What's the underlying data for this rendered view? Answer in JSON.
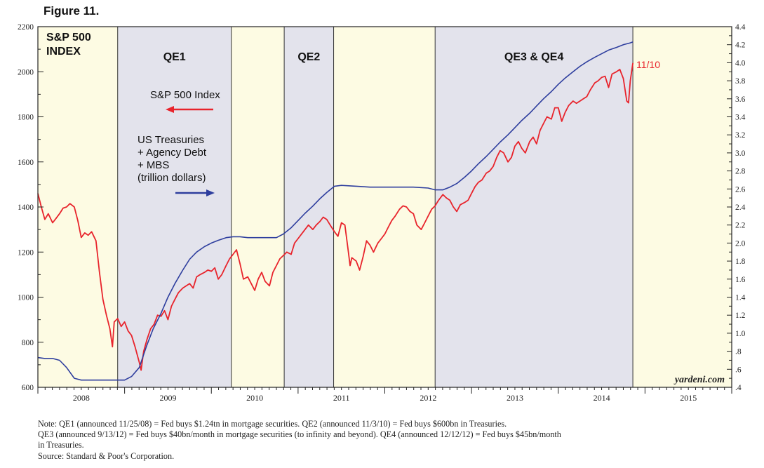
{
  "figure": {
    "title": "Figure 11.",
    "watermark": "yardeni.com",
    "notes": [
      "Note: QE1 (announced 11/25/08) = Fed buys $1.24tn in mortgage securities. QE2 (announced 11/3/10) = Fed buys $600bn in Treasuries.",
      "QE3 (announced 9/13/12) = Fed buys $40bn/month in mortgage securities (to infinity and beyond). QE4 (announced 12/12/12) = Fed buys $45bn/month",
      "in Treasuries.",
      "Source: Standard & Poor's Corporation."
    ]
  },
  "chart_data": {
    "type": "line",
    "title": "S&P 500 INDEX",
    "x_range": [
      2008.0,
      2016.0
    ],
    "x_ticks": [
      "2008",
      "2009",
      "2010",
      "2011",
      "2012",
      "2013",
      "2014",
      "2015"
    ],
    "y_left": {
      "range": [
        600,
        2200
      ],
      "ticks": [
        600,
        800,
        1000,
        1200,
        1400,
        1600,
        1800,
        2000,
        2200
      ]
    },
    "y_right": {
      "range": [
        0.4,
        4.4
      ],
      "ticks": [
        ".4",
        ".6",
        ".8",
        "1.0",
        "1.2",
        "1.4",
        "1.6",
        "1.8",
        "2.0",
        "2.2",
        "2.4",
        "2.6",
        "2.8",
        "3.0",
        "3.2",
        "3.4",
        "3.6",
        "3.8",
        "4.0",
        "4.2",
        "4.4"
      ]
    },
    "grid": false,
    "periods": [
      {
        "label": "",
        "start": 2008.0,
        "end": 2008.92,
        "shade": "#fdfbe3"
      },
      {
        "label": "QE1",
        "start": 2008.92,
        "end": 2010.23,
        "shade": "#e3e3ec"
      },
      {
        "label": "",
        "start": 2010.23,
        "end": 2010.84,
        "shade": "#fdfbe3"
      },
      {
        "label": "QE2",
        "start": 2010.84,
        "end": 2011.41,
        "shade": "#e3e3ec"
      },
      {
        "label": "",
        "start": 2011.41,
        "end": 2012.58,
        "shade": "#fdfbe3"
      },
      {
        "label": "QE3 & QE4",
        "start": 2012.58,
        "end": 2014.86,
        "shade": "#e3e3ec"
      },
      {
        "label": "",
        "start": 2014.86,
        "end": 2016.0,
        "shade": "#fdfbe3"
      }
    ],
    "legend": {
      "sp500_label": "S&P 500 Index",
      "fed_label_lines": [
        "US Treasuries",
        "+ Agency Debt",
        "+ MBS",
        "(trillion dollars)"
      ]
    },
    "end_label": "11/10",
    "series": [
      {
        "name": "S&P 500 Index",
        "axis": "left",
        "color": "#e8242c",
        "points": [
          [
            2008.0,
            1460
          ],
          [
            2008.04,
            1400
          ],
          [
            2008.08,
            1345
          ],
          [
            2008.12,
            1370
          ],
          [
            2008.17,
            1330
          ],
          [
            2008.21,
            1350
          ],
          [
            2008.25,
            1370
          ],
          [
            2008.29,
            1395
          ],
          [
            2008.33,
            1400
          ],
          [
            2008.37,
            1415
          ],
          [
            2008.42,
            1400
          ],
          [
            2008.46,
            1340
          ],
          [
            2008.5,
            1265
          ],
          [
            2008.54,
            1285
          ],
          [
            2008.58,
            1275
          ],
          [
            2008.62,
            1290
          ],
          [
            2008.67,
            1250
          ],
          [
            2008.71,
            1110
          ],
          [
            2008.75,
            990
          ],
          [
            2008.79,
            920
          ],
          [
            2008.83,
            860
          ],
          [
            2008.86,
            780
          ],
          [
            2008.88,
            890
          ],
          [
            2008.92,
            905
          ],
          [
            2008.96,
            870
          ],
          [
            2009.0,
            890
          ],
          [
            2009.04,
            850
          ],
          [
            2009.08,
            830
          ],
          [
            2009.12,
            780
          ],
          [
            2009.17,
            710
          ],
          [
            2009.19,
            676
          ],
          [
            2009.22,
            760
          ],
          [
            2009.26,
            815
          ],
          [
            2009.3,
            860
          ],
          [
            2009.34,
            880
          ],
          [
            2009.38,
            920
          ],
          [
            2009.42,
            915
          ],
          [
            2009.46,
            940
          ],
          [
            2009.5,
            900
          ],
          [
            2009.54,
            960
          ],
          [
            2009.58,
            990
          ],
          [
            2009.62,
            1020
          ],
          [
            2009.67,
            1040
          ],
          [
            2009.71,
            1050
          ],
          [
            2009.75,
            1060
          ],
          [
            2009.79,
            1040
          ],
          [
            2009.83,
            1090
          ],
          [
            2009.87,
            1100
          ],
          [
            2009.92,
            1110
          ],
          [
            2009.96,
            1120
          ],
          [
            2010.0,
            1115
          ],
          [
            2010.04,
            1130
          ],
          [
            2010.08,
            1080
          ],
          [
            2010.12,
            1100
          ],
          [
            2010.17,
            1140
          ],
          [
            2010.21,
            1170
          ],
          [
            2010.25,
            1190
          ],
          [
            2010.29,
            1210
          ],
          [
            2010.33,
            1150
          ],
          [
            2010.37,
            1080
          ],
          [
            2010.42,
            1090
          ],
          [
            2010.46,
            1060
          ],
          [
            2010.5,
            1030
          ],
          [
            2010.54,
            1080
          ],
          [
            2010.58,
            1110
          ],
          [
            2010.62,
            1070
          ],
          [
            2010.67,
            1050
          ],
          [
            2010.71,
            1110
          ],
          [
            2010.75,
            1140
          ],
          [
            2010.79,
            1170
          ],
          [
            2010.83,
            1185
          ],
          [
            2010.87,
            1200
          ],
          [
            2010.92,
            1190
          ],
          [
            2010.96,
            1240
          ],
          [
            2011.0,
            1260
          ],
          [
            2011.04,
            1280
          ],
          [
            2011.08,
            1300
          ],
          [
            2011.12,
            1320
          ],
          [
            2011.17,
            1300
          ],
          [
            2011.21,
            1320
          ],
          [
            2011.25,
            1335
          ],
          [
            2011.29,
            1355
          ],
          [
            2011.33,
            1345
          ],
          [
            2011.37,
            1320
          ],
          [
            2011.42,
            1290
          ],
          [
            2011.46,
            1270
          ],
          [
            2011.5,
            1330
          ],
          [
            2011.54,
            1320
          ],
          [
            2011.58,
            1200
          ],
          [
            2011.6,
            1140
          ],
          [
            2011.62,
            1175
          ],
          [
            2011.67,
            1160
          ],
          [
            2011.71,
            1120
          ],
          [
            2011.75,
            1180
          ],
          [
            2011.79,
            1250
          ],
          [
            2011.83,
            1230
          ],
          [
            2011.87,
            1200
          ],
          [
            2011.92,
            1240
          ],
          [
            2011.96,
            1260
          ],
          [
            2012.0,
            1280
          ],
          [
            2012.04,
            1310
          ],
          [
            2012.08,
            1340
          ],
          [
            2012.12,
            1360
          ],
          [
            2012.17,
            1390
          ],
          [
            2012.21,
            1405
          ],
          [
            2012.25,
            1400
          ],
          [
            2012.29,
            1380
          ],
          [
            2012.33,
            1370
          ],
          [
            2012.37,
            1320
          ],
          [
            2012.42,
            1300
          ],
          [
            2012.46,
            1330
          ],
          [
            2012.5,
            1360
          ],
          [
            2012.54,
            1390
          ],
          [
            2012.58,
            1405
          ],
          [
            2012.62,
            1430
          ],
          [
            2012.67,
            1455
          ],
          [
            2012.71,
            1440
          ],
          [
            2012.75,
            1430
          ],
          [
            2012.79,
            1400
          ],
          [
            2012.83,
            1380
          ],
          [
            2012.87,
            1410
          ],
          [
            2012.92,
            1420
          ],
          [
            2012.96,
            1430
          ],
          [
            2013.0,
            1460
          ],
          [
            2013.04,
            1490
          ],
          [
            2013.08,
            1510
          ],
          [
            2013.12,
            1520
          ],
          [
            2013.17,
            1550
          ],
          [
            2013.21,
            1560
          ],
          [
            2013.25,
            1580
          ],
          [
            2013.29,
            1620
          ],
          [
            2013.33,
            1650
          ],
          [
            2013.37,
            1640
          ],
          [
            2013.42,
            1600
          ],
          [
            2013.46,
            1620
          ],
          [
            2013.5,
            1670
          ],
          [
            2013.54,
            1690
          ],
          [
            2013.58,
            1660
          ],
          [
            2013.62,
            1640
          ],
          [
            2013.67,
            1690
          ],
          [
            2013.71,
            1710
          ],
          [
            2013.75,
            1680
          ],
          [
            2013.79,
            1740
          ],
          [
            2013.83,
            1770
          ],
          [
            2013.87,
            1800
          ],
          [
            2013.92,
            1790
          ],
          [
            2013.96,
            1840
          ],
          [
            2014.0,
            1840
          ],
          [
            2014.04,
            1780
          ],
          [
            2014.08,
            1820
          ],
          [
            2014.12,
            1850
          ],
          [
            2014.17,
            1870
          ],
          [
            2014.21,
            1860
          ],
          [
            2014.25,
            1870
          ],
          [
            2014.29,
            1880
          ],
          [
            2014.33,
            1890
          ],
          [
            2014.37,
            1920
          ],
          [
            2014.42,
            1950
          ],
          [
            2014.46,
            1960
          ],
          [
            2014.5,
            1975
          ],
          [
            2014.54,
            1980
          ],
          [
            2014.58,
            1930
          ],
          [
            2014.62,
            1990
          ],
          [
            2014.67,
            2000
          ],
          [
            2014.71,
            2010
          ],
          [
            2014.75,
            1970
          ],
          [
            2014.79,
            1870
          ],
          [
            2014.81,
            1862
          ],
          [
            2014.83,
            1960
          ],
          [
            2014.86,
            2039
          ]
        ]
      },
      {
        "name": "US Treasuries + Agency Debt + MBS",
        "axis": "right",
        "color": "#2e3e9e",
        "points": [
          [
            2008.0,
            0.73
          ],
          [
            2008.08,
            0.72
          ],
          [
            2008.17,
            0.72
          ],
          [
            2008.25,
            0.7
          ],
          [
            2008.33,
            0.62
          ],
          [
            2008.42,
            0.5
          ],
          [
            2008.5,
            0.48
          ],
          [
            2008.67,
            0.48
          ],
          [
            2008.83,
            0.48
          ],
          [
            2008.92,
            0.48
          ],
          [
            2009.0,
            0.48
          ],
          [
            2009.08,
            0.52
          ],
          [
            2009.17,
            0.62
          ],
          [
            2009.25,
            0.85
          ],
          [
            2009.33,
            1.05
          ],
          [
            2009.42,
            1.22
          ],
          [
            2009.5,
            1.4
          ],
          [
            2009.58,
            1.55
          ],
          [
            2009.67,
            1.7
          ],
          [
            2009.75,
            1.82
          ],
          [
            2009.83,
            1.9
          ],
          [
            2009.92,
            1.96
          ],
          [
            2010.0,
            2.0
          ],
          [
            2010.08,
            2.03
          ],
          [
            2010.17,
            2.06
          ],
          [
            2010.25,
            2.07
          ],
          [
            2010.33,
            2.07
          ],
          [
            2010.42,
            2.06
          ],
          [
            2010.5,
            2.06
          ],
          [
            2010.58,
            2.06
          ],
          [
            2010.67,
            2.06
          ],
          [
            2010.75,
            2.06
          ],
          [
            2010.83,
            2.1
          ],
          [
            2010.92,
            2.17
          ],
          [
            2011.0,
            2.25
          ],
          [
            2011.08,
            2.33
          ],
          [
            2011.17,
            2.41
          ],
          [
            2011.25,
            2.49
          ],
          [
            2011.33,
            2.56
          ],
          [
            2011.42,
            2.63
          ],
          [
            2011.5,
            2.64
          ],
          [
            2011.67,
            2.63
          ],
          [
            2011.83,
            2.62
          ],
          [
            2012.0,
            2.62
          ],
          [
            2012.17,
            2.62
          ],
          [
            2012.33,
            2.62
          ],
          [
            2012.5,
            2.61
          ],
          [
            2012.58,
            2.59
          ],
          [
            2012.67,
            2.59
          ],
          [
            2012.75,
            2.62
          ],
          [
            2012.83,
            2.66
          ],
          [
            2012.92,
            2.73
          ],
          [
            2013.0,
            2.8
          ],
          [
            2013.08,
            2.88
          ],
          [
            2013.17,
            2.96
          ],
          [
            2013.25,
            3.04
          ],
          [
            2013.33,
            3.12
          ],
          [
            2013.42,
            3.2
          ],
          [
            2013.5,
            3.28
          ],
          [
            2013.58,
            3.36
          ],
          [
            2013.67,
            3.44
          ],
          [
            2013.75,
            3.52
          ],
          [
            2013.83,
            3.6
          ],
          [
            2013.92,
            3.68
          ],
          [
            2014.0,
            3.76
          ],
          [
            2014.08,
            3.83
          ],
          [
            2014.17,
            3.9
          ],
          [
            2014.25,
            3.96
          ],
          [
            2014.33,
            4.01
          ],
          [
            2014.42,
            4.06
          ],
          [
            2014.5,
            4.1
          ],
          [
            2014.58,
            4.14
          ],
          [
            2014.67,
            4.17
          ],
          [
            2014.75,
            4.2
          ],
          [
            2014.83,
            4.22
          ],
          [
            2014.86,
            4.23
          ]
        ]
      }
    ]
  }
}
